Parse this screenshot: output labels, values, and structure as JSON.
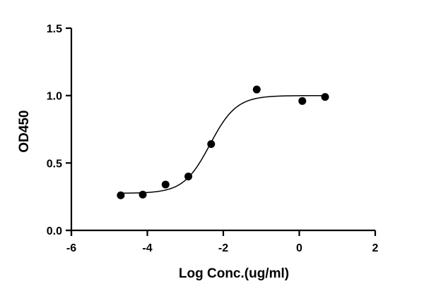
{
  "chart_data": {
    "type": "scatter",
    "xlabel": "Log Conc.(ug/ml)",
    "ylabel": "OD450",
    "xlim": [
      -6,
      2
    ],
    "ylim": [
      0,
      1.5
    ],
    "x_ticks": [
      -6,
      -4,
      -2,
      0,
      2
    ],
    "x_tick_labels": [
      "-6",
      "-4",
      "-2",
      "0",
      "2"
    ],
    "y_ticks": [
      0,
      0.5,
      1.0,
      1.5
    ],
    "y_tick_labels": [
      "0.0",
      "0.5",
      "1.0",
      "1.5"
    ],
    "grid": false,
    "series": [
      {
        "x": [
          -4.7,
          -4.12,
          -3.52,
          -2.92,
          -2.32,
          -1.12,
          0.08,
          0.68
        ],
        "y": [
          0.26,
          0.265,
          0.34,
          0.4,
          0.64,
          1.045,
          0.96,
          0.99
        ],
        "fit": {
          "model": "four-parameter logistic",
          "bottom": 0.275,
          "top": 1.0,
          "log_ec50": -2.35,
          "hill_slope": 1.25
        }
      }
    ],
    "colors": {
      "points": "#000000",
      "curve": "#000000",
      "axes": "#000000"
    }
  }
}
